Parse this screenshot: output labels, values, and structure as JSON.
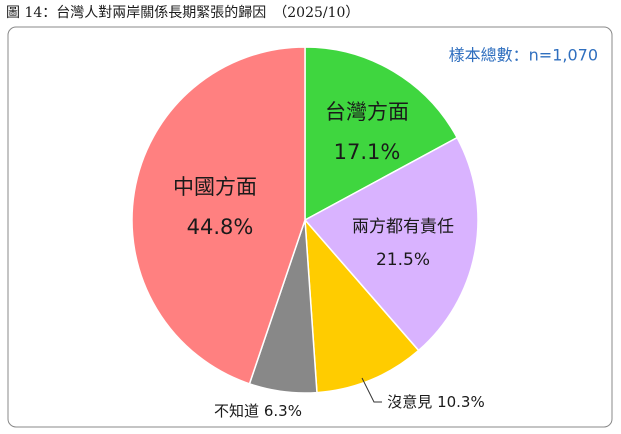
{
  "chart_data": {
    "type": "pie",
    "title": "圖 14：台灣人對兩岸關係長期緊張的歸因　（2025/10）",
    "annotation": "樣本總數：n=1,070",
    "categories": [
      "台灣方面",
      "兩方都有責任",
      "沒意見",
      "不知道",
      "中國方面"
    ],
    "values": [
      17.1,
      21.5,
      10.3,
      6.3,
      44.8
    ],
    "value_labels": [
      "17.1%",
      "21.5%",
      "10.3%",
      "6.3%",
      "44.8%"
    ],
    "colors": [
      "#3fd63f",
      "#d9b3ff",
      "#ffcc00",
      "#888888",
      "#ff8080"
    ]
  }
}
